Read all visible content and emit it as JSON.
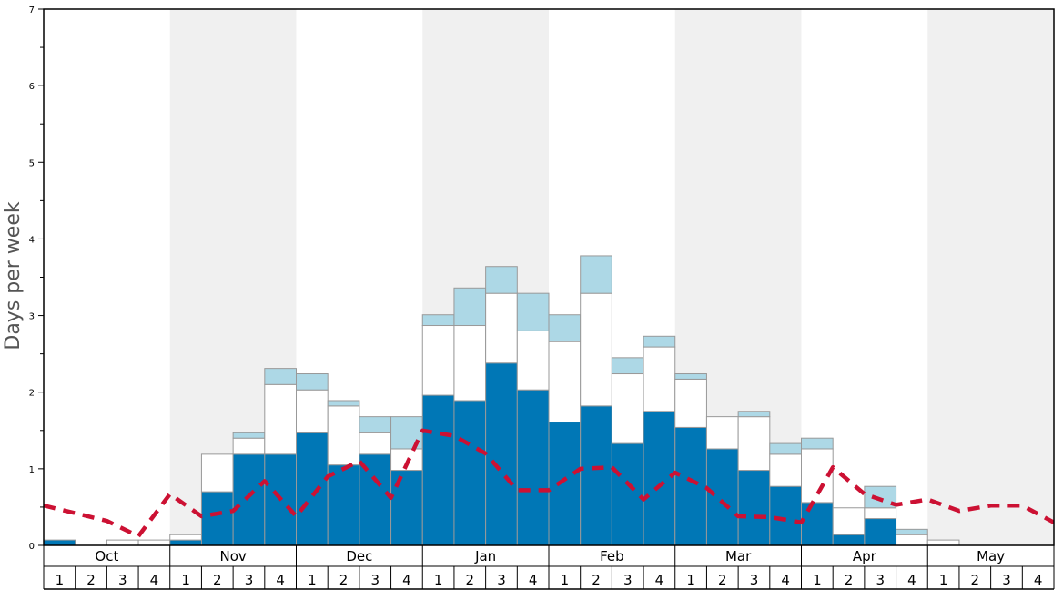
{
  "chart_data": {
    "type": "bar",
    "ylabel": "Days per week",
    "ylim": [
      0,
      7
    ],
    "y_ticks": [
      "0",
      "1",
      "2",
      "3",
      "4",
      "5",
      "6",
      "7"
    ],
    "months": [
      "Oct",
      "Nov",
      "Dec",
      "Jan",
      "Feb",
      "Mar",
      "Apr",
      "May"
    ],
    "week_labels": [
      "1",
      "2",
      "3",
      "4"
    ],
    "colors": {
      "dark": "#0077b6",
      "white": "#ffffff",
      "light": "#add8e6",
      "line": "#cc1133",
      "shade": "#f0f0f0",
      "bar_border": "#999999"
    },
    "series": [
      {
        "name": "dark blue (bottom)",
        "values": [
          0.07,
          0,
          0,
          0,
          0.07,
          0.7,
          1.19,
          1.19,
          1.47,
          1.05,
          1.19,
          0.98,
          1.96,
          1.89,
          2.38,
          2.03,
          1.61,
          1.82,
          1.33,
          1.75,
          1.54,
          1.26,
          0.98,
          0.77,
          0.56,
          0.14,
          0.35,
          0,
          0,
          0,
          0,
          0
        ]
      },
      {
        "name": "white (middle)",
        "values": [
          0,
          0,
          0.07,
          0.07,
          0.07,
          0.49,
          0.21,
          0.91,
          0.56,
          0.77,
          0.28,
          0.28,
          0.91,
          0.98,
          0.91,
          0.77,
          1.05,
          1.47,
          0.91,
          0.84,
          0.63,
          0.42,
          0.7,
          0.42,
          0.7,
          0.35,
          0.14,
          0.14,
          0.07,
          0,
          0,
          0
        ]
      },
      {
        "name": "light blue (top)",
        "values": [
          0,
          0,
          0,
          0,
          0,
          0,
          0.07,
          0.21,
          0.21,
          0.07,
          0.21,
          0.42,
          0.14,
          0.49,
          0.35,
          0.49,
          0.35,
          0.49,
          0.21,
          0.14,
          0.07,
          0,
          0.07,
          0.14,
          0.14,
          0,
          0.28,
          0.07,
          0,
          0,
          0,
          0
        ]
      },
      {
        "name": "average (dashed)",
        "values": [
          0.52,
          0.42,
          0.32,
          0.12,
          0.67,
          0.38,
          0.45,
          0.84,
          0.38,
          0.9,
          1.1,
          0.62,
          1.5,
          1.43,
          1.2,
          0.72,
          0.72,
          1.0,
          1.02,
          0.6,
          0.95,
          0.75,
          0.38,
          0.37,
          0.3,
          1.02,
          0.67,
          0.53,
          0.6,
          0.45,
          0.52,
          0.52,
          0.3
        ]
      }
    ]
  }
}
